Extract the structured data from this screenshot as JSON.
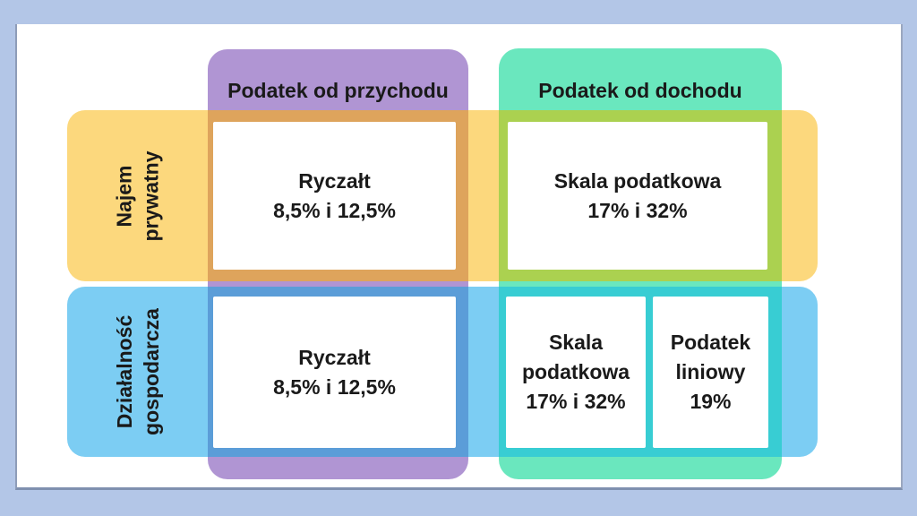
{
  "slide": {
    "background_color": "#B3C6E7",
    "panel_color": "#FFFFFF",
    "text_color": "#1A1A1A"
  },
  "matrix": {
    "columns": [
      {
        "label": "Podatek od przychodu",
        "color": "#B095D3"
      },
      {
        "label": "Podatek od dochodu",
        "color": "#6AE7BE"
      }
    ],
    "rows": [
      {
        "label_line1": "Najem",
        "label_line2": "prywatny",
        "color": "#FCD87D"
      },
      {
        "label_line1": "Działalność",
        "label_line2": "gospodarcza",
        "color": "#7CCDF3"
      }
    ],
    "overlaps": {
      "najem_przychod": "#DEA45C",
      "najem_dochod": "#ABD150",
      "dzialalnosc_przychod": "#5B9DD8",
      "dzialalnosc_dochod": "#38CDD3"
    },
    "cells": [
      {
        "lines": [
          "Ryczałt",
          "8,5% i 12,5%"
        ]
      },
      {
        "lines": [
          "Skala podatkowa",
          "17% i 32%"
        ]
      },
      {
        "lines": [
          "Ryczałt",
          "8,5% i 12,5%"
        ]
      },
      {
        "lines": [
          "Skala",
          "podatkowa",
          "17% i 32%"
        ]
      },
      {
        "lines": [
          "Podatek",
          "liniowy",
          "19%"
        ]
      }
    ]
  }
}
